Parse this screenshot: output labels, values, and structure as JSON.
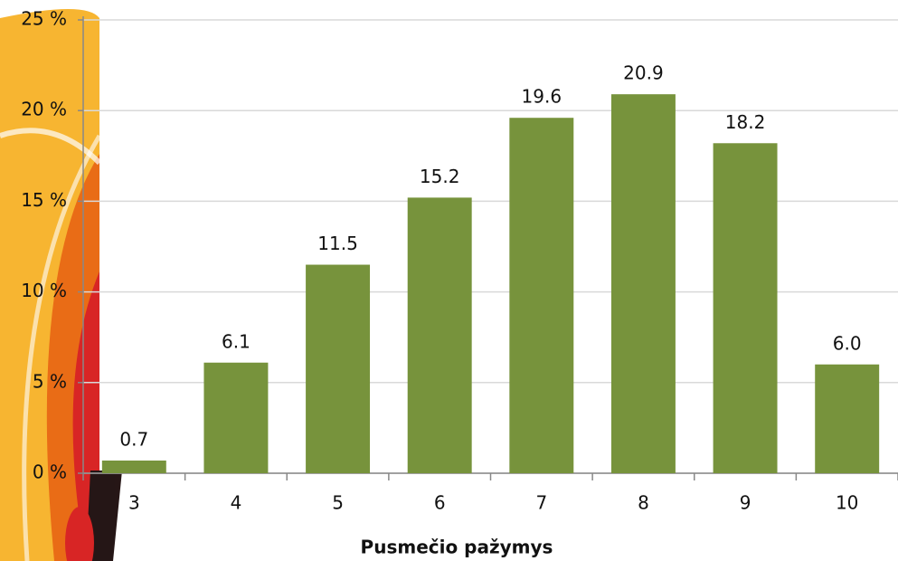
{
  "chart_data": {
    "type": "bar",
    "x_label": "Pusmečio pažymys",
    "categories": [
      "3",
      "4",
      "5",
      "6",
      "7",
      "8",
      "9",
      "10"
    ],
    "values": [
      0.7,
      6.1,
      11.5,
      15.2,
      19.6,
      20.9,
      18.2,
      6.0
    ],
    "value_labels": [
      "0.7",
      "6.1",
      "11.5",
      "15.2",
      "19.6",
      "20.9",
      "18.2",
      "6.0"
    ],
    "color": "#77933c",
    "ylim": [
      0,
      25
    ],
    "yticks": [
      {
        "value": 0,
        "label": "0 %"
      },
      {
        "value": 5,
        "label": "5 %"
      },
      {
        "value": 10,
        "label": "10 %"
      },
      {
        "value": 15,
        "label": "15 %"
      },
      {
        "value": 20,
        "label": "20 %"
      },
      {
        "value": 25,
        "label": "25 %"
      }
    ],
    "grid": true
  }
}
